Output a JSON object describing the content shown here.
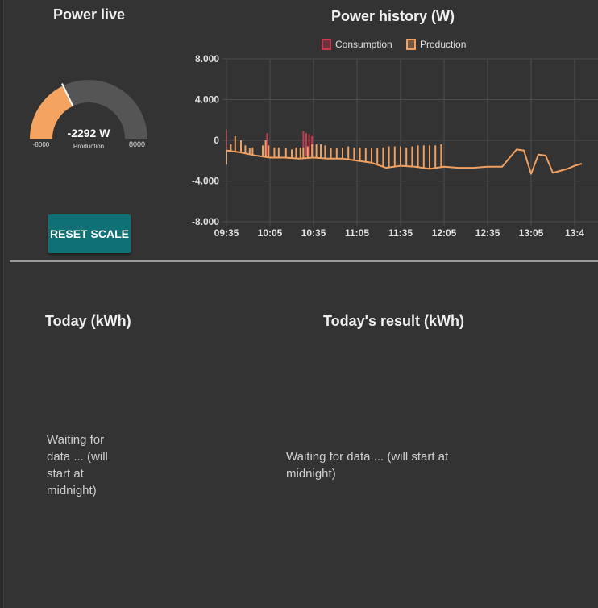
{
  "power_live": {
    "title": "Power live",
    "gauge": {
      "value_text": "-2292 W",
      "value": -2292,
      "label": "Production",
      "min_text": "-8000",
      "max_text": "8000",
      "min": -8000,
      "max": 8000,
      "fill_color": "#f4a460",
      "track_color": "#555555"
    },
    "reset_button": "RESET SCALE",
    "reset_color": "#0f7076"
  },
  "chart_data": {
    "type": "line",
    "title": "Power history (W)",
    "xlabel": "",
    "ylabel": "",
    "legend_position": "top",
    "grid": true,
    "ylim": [
      -8000,
      8000
    ],
    "y_ticks": [
      8000,
      4000,
      0,
      -4000,
      -8000
    ],
    "y_tick_labels": [
      "8.000",
      "4.000",
      "0",
      "-4.000",
      "-8.000"
    ],
    "x_tick_labels": [
      "09:35",
      "10:05",
      "10:35",
      "11:05",
      "11:35",
      "12:05",
      "12:35",
      "13:05",
      "13:4"
    ],
    "series": [
      {
        "name": "Consumption",
        "color": "#c8384f",
        "spikes": [
          [
            0,
            1000
          ],
          [
            28,
            700
          ],
          [
            53,
            900
          ],
          [
            55,
            700
          ],
          [
            57,
            600
          ],
          [
            59,
            400
          ]
        ]
      },
      {
        "name": "Production",
        "color": "#f0a060",
        "times": [
          "09:35",
          "09:45",
          "09:55",
          "10:05",
          "10:15",
          "10:25",
          "10:35",
          "10:45",
          "10:55",
          "11:05",
          "11:15",
          "11:25",
          "11:35",
          "11:45",
          "11:55",
          "12:05",
          "12:15",
          "12:25",
          "12:35",
          "12:45",
          "12:55",
          "13:00",
          "13:05",
          "13:10",
          "13:15",
          "13:20",
          "13:25",
          "13:30",
          "13:35",
          "13:40"
        ],
        "values": [
          -1000,
          -1200,
          -1500,
          -1700,
          -1700,
          -1800,
          -1700,
          -1800,
          -1800,
          -2000,
          -2200,
          -2700,
          -2500,
          -2600,
          -2800,
          -2600,
          -2700,
          -2700,
          -2600,
          -2600,
          -900,
          -1000,
          -3300,
          -1400,
          -1500,
          -3200,
          -3000,
          -2800,
          -2500,
          -2300
        ],
        "spikes": [
          [
            0,
            -2400
          ],
          [
            3,
            -400
          ],
          [
            6,
            400
          ],
          [
            10,
            0
          ],
          [
            13,
            -500
          ],
          [
            16,
            -800
          ],
          [
            18,
            -700
          ],
          [
            25,
            -500
          ],
          [
            27,
            0
          ],
          [
            29,
            -500
          ],
          [
            33,
            -700
          ],
          [
            36,
            -700
          ],
          [
            41,
            -800
          ],
          [
            45,
            -900
          ],
          [
            48,
            -700
          ],
          [
            51,
            -700
          ],
          [
            53,
            -700
          ],
          [
            56,
            -600
          ],
          [
            59,
            -400
          ],
          [
            62,
            -400
          ],
          [
            65,
            -400
          ],
          [
            68,
            -500
          ],
          [
            72,
            -800
          ],
          [
            76,
            -800
          ],
          [
            80,
            -700
          ],
          [
            84,
            -600
          ],
          [
            88,
            -700
          ],
          [
            92,
            -700
          ],
          [
            96,
            -800
          ],
          [
            100,
            -800
          ],
          [
            104,
            -800
          ],
          [
            108,
            -700
          ],
          [
            112,
            -600
          ],
          [
            116,
            -600
          ],
          [
            120,
            -600
          ],
          [
            124,
            -700
          ],
          [
            128,
            -600
          ],
          [
            132,
            -500
          ],
          [
            136,
            -500
          ],
          [
            140,
            -500
          ],
          [
            144,
            -500
          ],
          [
            148,
            -400
          ]
        ]
      }
    ]
  },
  "today": {
    "title": "Today (kWh)",
    "waiting_text": "Waiting for data ... (will start at midnight)"
  },
  "today_result": {
    "title": "Today's result (kWh)",
    "waiting_text": "Waiting for data ... (will start at midnight)"
  }
}
